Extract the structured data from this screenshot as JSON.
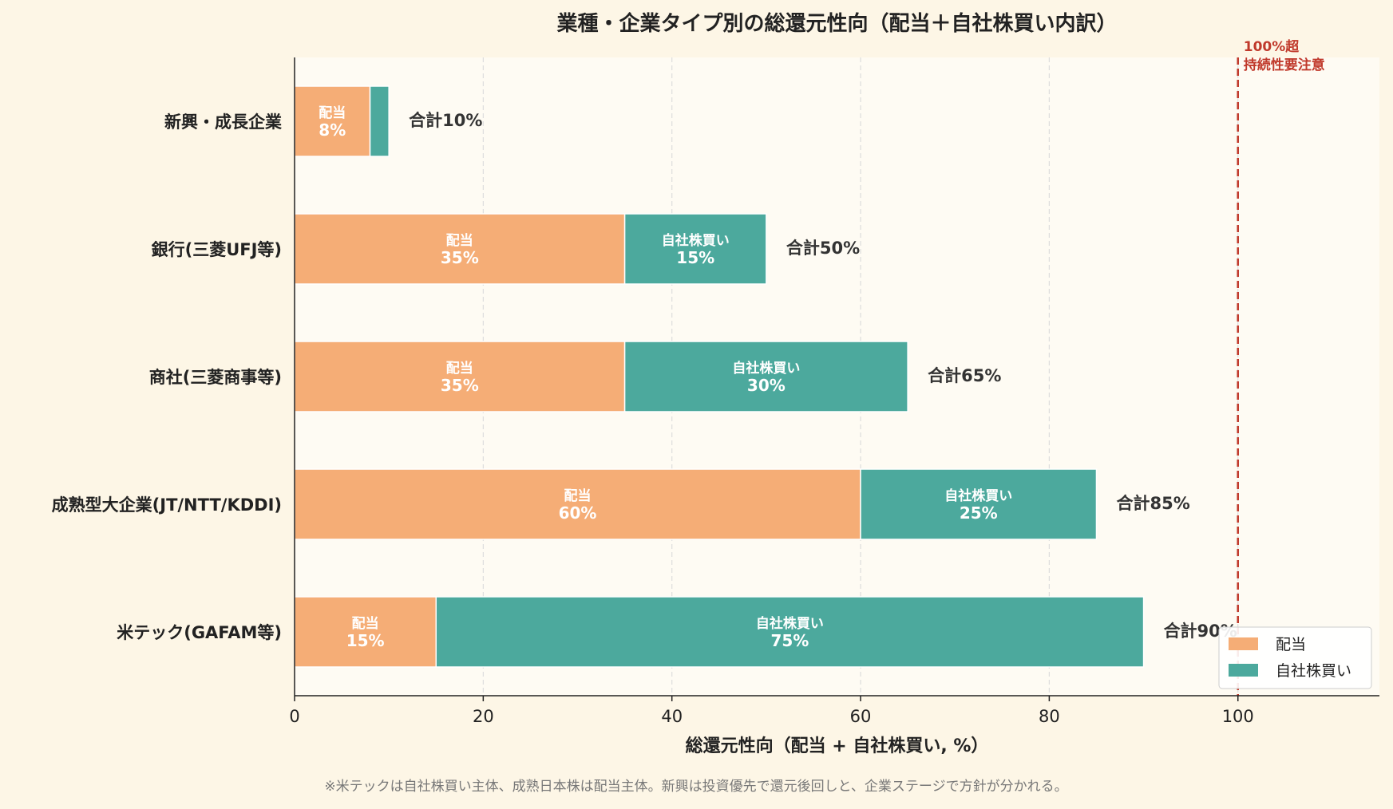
{
  "chart_data": {
    "type": "bar",
    "orientation": "horizontal",
    "stacked": true,
    "title": "業種・企業タイプ別の総還元性向（配当＋自社株買い内訳）",
    "xlabel": "総還元性向（配当 + 自社株買い, %）",
    "ylabel": "",
    "xlim": [
      0,
      115
    ],
    "xticks": [
      0,
      20,
      40,
      60,
      80,
      100
    ],
    "grid": "x-dashed",
    "categories": [
      "新興・成長企業",
      "銀行(三菱UFJ等)",
      "商社(三菱商事等)",
      "成熟型大企業(JT/NTT/KDDI)",
      "米テック(GAFAM等)"
    ],
    "series": [
      {
        "name": "配当",
        "color": "#f5ad76",
        "values": [
          8,
          35,
          35,
          60,
          15
        ]
      },
      {
        "name": "自社株買い",
        "color": "#4ca99d",
        "values": [
          2,
          15,
          30,
          25,
          75
        ]
      }
    ],
    "segment_labels": {
      "配当": [
        "配当\n8%",
        "配当\n35%",
        "配当\n35%",
        "配当\n60%",
        "配当\n15%"
      ],
      "自社株買い": [
        "",
        "自社株買い\n15%",
        "自社株買い\n30%",
        "自社株買い\n25%",
        "自社株買い\n75%"
      ]
    },
    "total_labels": [
      "合計10%",
      "合計50%",
      "合計65%",
      "合計85%",
      "合計90%"
    ],
    "reference_line": {
      "x": 100,
      "label": "100%超\n持続性要注意",
      "color": "#c0392b"
    },
    "legend": {
      "position": "bottom-right",
      "entries": [
        "配当",
        "自社株買い"
      ]
    },
    "footnote": "※米テックは自社株買い主体、成熟日本株は配当主体。新興は投資優先で還元後回しと、企業ステージで方針が分かれる。"
  },
  "colors": {
    "figure_background": "#fdf6e6",
    "plot_background": "#fefbf3",
    "axis": "#222222",
    "grid": "#dddddd",
    "text": "#222222",
    "total_text": "#333333",
    "footnote_text": "#777777"
  }
}
